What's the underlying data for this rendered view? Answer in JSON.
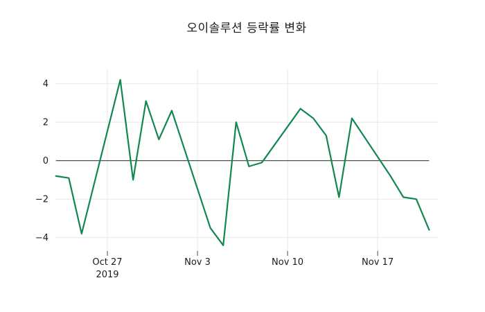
{
  "title": "오이솔루션 등락률 변화",
  "colors": {
    "line": "#118750",
    "grid": "#e8e8e8",
    "zero_line": "#3a3a3a",
    "tick": "#4d4d4d",
    "text": "#1a1a1a",
    "background": "#ffffff"
  },
  "chart_data": {
    "type": "line",
    "title": "오이솔루션 등락률 변화",
    "xlabel": "",
    "ylabel": "",
    "grid": true,
    "legend": false,
    "zero_line": true,
    "ylim": [
      -4.85,
      4.65
    ],
    "dates": [
      "Oct 23",
      "Oct 24",
      "Oct 25",
      "Oct 28",
      "Oct 29",
      "Oct 30",
      "Oct 31",
      "Nov 1",
      "Nov 4",
      "Nov 5",
      "Nov 6",
      "Nov 7",
      "Nov 8",
      "Nov 11",
      "Nov 12",
      "Nov 13",
      "Nov 14",
      "Nov 15",
      "Nov 18",
      "Nov 19",
      "Nov 20",
      "Nov 21"
    ],
    "day_offsets": [
      0,
      1,
      2,
      5,
      6,
      7,
      8,
      9,
      12,
      13,
      14,
      15,
      16,
      19,
      20,
      21,
      22,
      23,
      26,
      27,
      28,
      29
    ],
    "values": [
      -0.8,
      -0.9,
      -3.8,
      4.2,
      -1.0,
      3.1,
      1.1,
      2.6,
      -3.5,
      -4.4,
      2.0,
      -0.3,
      -0.1,
      2.7,
      2.2,
      1.3,
      -1.9,
      2.2,
      -0.8,
      -1.9,
      -2.0,
      -3.6
    ],
    "yticks": [
      {
        "value": 4,
        "label": "4"
      },
      {
        "value": 2,
        "label": "2"
      },
      {
        "value": 0,
        "label": "0"
      },
      {
        "value": -2,
        "label": "−2"
      },
      {
        "value": -4,
        "label": "−4"
      }
    ],
    "xticks": [
      {
        "day": 4,
        "label": "Oct 27",
        "sublabel": "2019"
      },
      {
        "day": 11,
        "label": "Nov 3",
        "sublabel": ""
      },
      {
        "day": 18,
        "label": "Nov 10",
        "sublabel": ""
      },
      {
        "day": 25,
        "label": "Nov 17",
        "sublabel": ""
      }
    ]
  }
}
